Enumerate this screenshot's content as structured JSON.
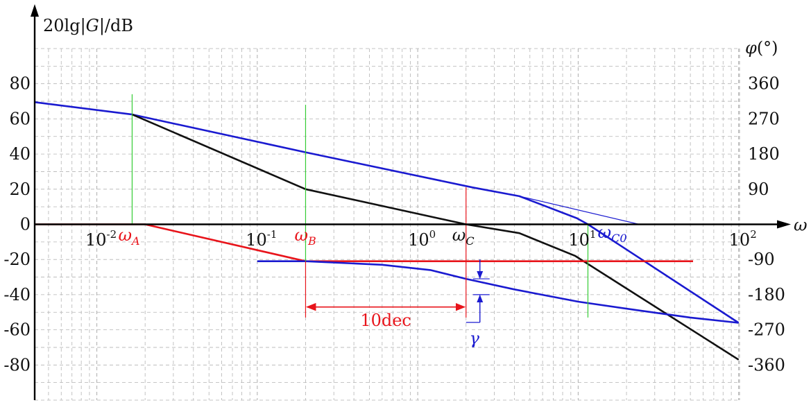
{
  "chart_data": {
    "type": "line",
    "x_scale": "log",
    "x_range": [
      0.0041,
      101.3
    ],
    "y_left_range": [
      -100,
      100
    ],
    "y_right_range": [
      -450,
      450
    ],
    "grid": true,
    "axis_titles": {
      "y_left": "20lg|G|/dB",
      "y_right_symbol": "φ",
      "y_right_unit": "(°)",
      "x": "ω"
    },
    "x_tick_labels": [
      {
        "value": 0.01,
        "base": "10",
        "exp": "-2"
      },
      {
        "value": 0.1,
        "base": "10",
        "exp": "-1"
      },
      {
        "value": 1,
        "base": "10",
        "exp": "0"
      },
      {
        "value": 10,
        "base": "10",
        "exp": "1"
      },
      {
        "value": 100,
        "base": "10",
        "exp": "2"
      }
    ],
    "y_left_ticks": [
      80,
      60,
      40,
      20,
      0,
      -20,
      -40,
      -60,
      -80
    ],
    "y_left_tick_labels": [
      "80",
      "60",
      "40",
      "20",
      "0",
      "-20",
      "-40",
      "-60",
      "-80"
    ],
    "y_right_ticks": [
      360,
      270,
      180,
      90,
      -90,
      -180,
      -270,
      -360
    ],
    "y_right_tick_labels": [
      "360",
      "270",
      "180",
      "90",
      "-90",
      "-180",
      "-270",
      "-360"
    ],
    "series": [
      {
        "color": "#1a1ad0",
        "width": 2.6,
        "axis": "left",
        "points": [
          [
            0.0041,
            69.5
          ],
          [
            0.0166,
            62.5
          ],
          [
            0.2,
            41
          ],
          [
            2.2,
            21
          ],
          [
            4.3,
            16
          ],
          [
            9.8,
            3.5
          ],
          [
            11.5,
            0
          ],
          [
            100,
            -56
          ]
        ]
      },
      {
        "color": "#1a1ad0",
        "width": 1.2,
        "axis": "left",
        "points": [
          [
            4.3,
            16
          ],
          [
            24,
            0
          ]
        ]
      },
      {
        "color": "#111111",
        "width": 2.6,
        "axis": "left",
        "points": [
          [
            0.0166,
            62.5
          ],
          [
            0.2,
            20
          ],
          [
            2.0,
            0
          ],
          [
            4.3,
            -5
          ],
          [
            9.6,
            -18
          ],
          [
            100,
            -77
          ]
        ]
      },
      {
        "color": "#e8141b",
        "width": 2.6,
        "axis": "left",
        "points": [
          [
            0.0041,
            0
          ],
          [
            0.02,
            0
          ],
          [
            0.2,
            -21
          ],
          [
            52,
            -21
          ]
        ]
      },
      {
        "color": "#1a1ad0",
        "width": 2.6,
        "axis": "left",
        "points": [
          [
            0.1,
            -21
          ],
          [
            0.2,
            -21
          ],
          [
            0.6,
            -23
          ],
          [
            1.2,
            -26
          ],
          [
            2.0,
            -31
          ],
          [
            4.0,
            -37
          ],
          [
            10,
            -44
          ],
          [
            24,
            -49
          ],
          [
            50,
            -53
          ],
          [
            100,
            -56
          ]
        ]
      }
    ],
    "vertical_markers": [
      {
        "x": 0.0166,
        "y1": 74,
        "y2": 0,
        "color": "#33cc33"
      },
      {
        "x": 0.2,
        "y1": 68,
        "y2": -21,
        "color": "#33cc33"
      },
      {
        "x": 11.5,
        "y1": 0,
        "y2": -53,
        "color": "#33cc33"
      },
      {
        "x": 0.2,
        "y1": -21,
        "y2": -53,
        "color": "#e8141b"
      },
      {
        "x": 2.0,
        "y1": 21,
        "y2": -53,
        "color": "#e8141b"
      }
    ],
    "annotations": {
      "omega_A": {
        "sym": "ω",
        "sub": "A",
        "color": "red",
        "x": 0.0166,
        "y": -7
      },
      "omega_B": {
        "sym": "ω",
        "sub": "B",
        "color": "red",
        "x": 0.2,
        "y": -7
      },
      "omega_C": {
        "sym": "ω",
        "sub": "C",
        "color": "black",
        "x": 2.0,
        "y": -7
      },
      "omega_C0": {
        "sym": "ω",
        "sub": "C0",
        "color": "blue",
        "x": 13.5,
        "y": -7
      },
      "dec_label": "10dec",
      "dec_span": [
        0.2,
        2.0
      ],
      "dec_y": -47,
      "gamma_label": "γ",
      "gamma_x": 2.0,
      "gamma_top": -31,
      "gamma_bottom": -40
    }
  }
}
